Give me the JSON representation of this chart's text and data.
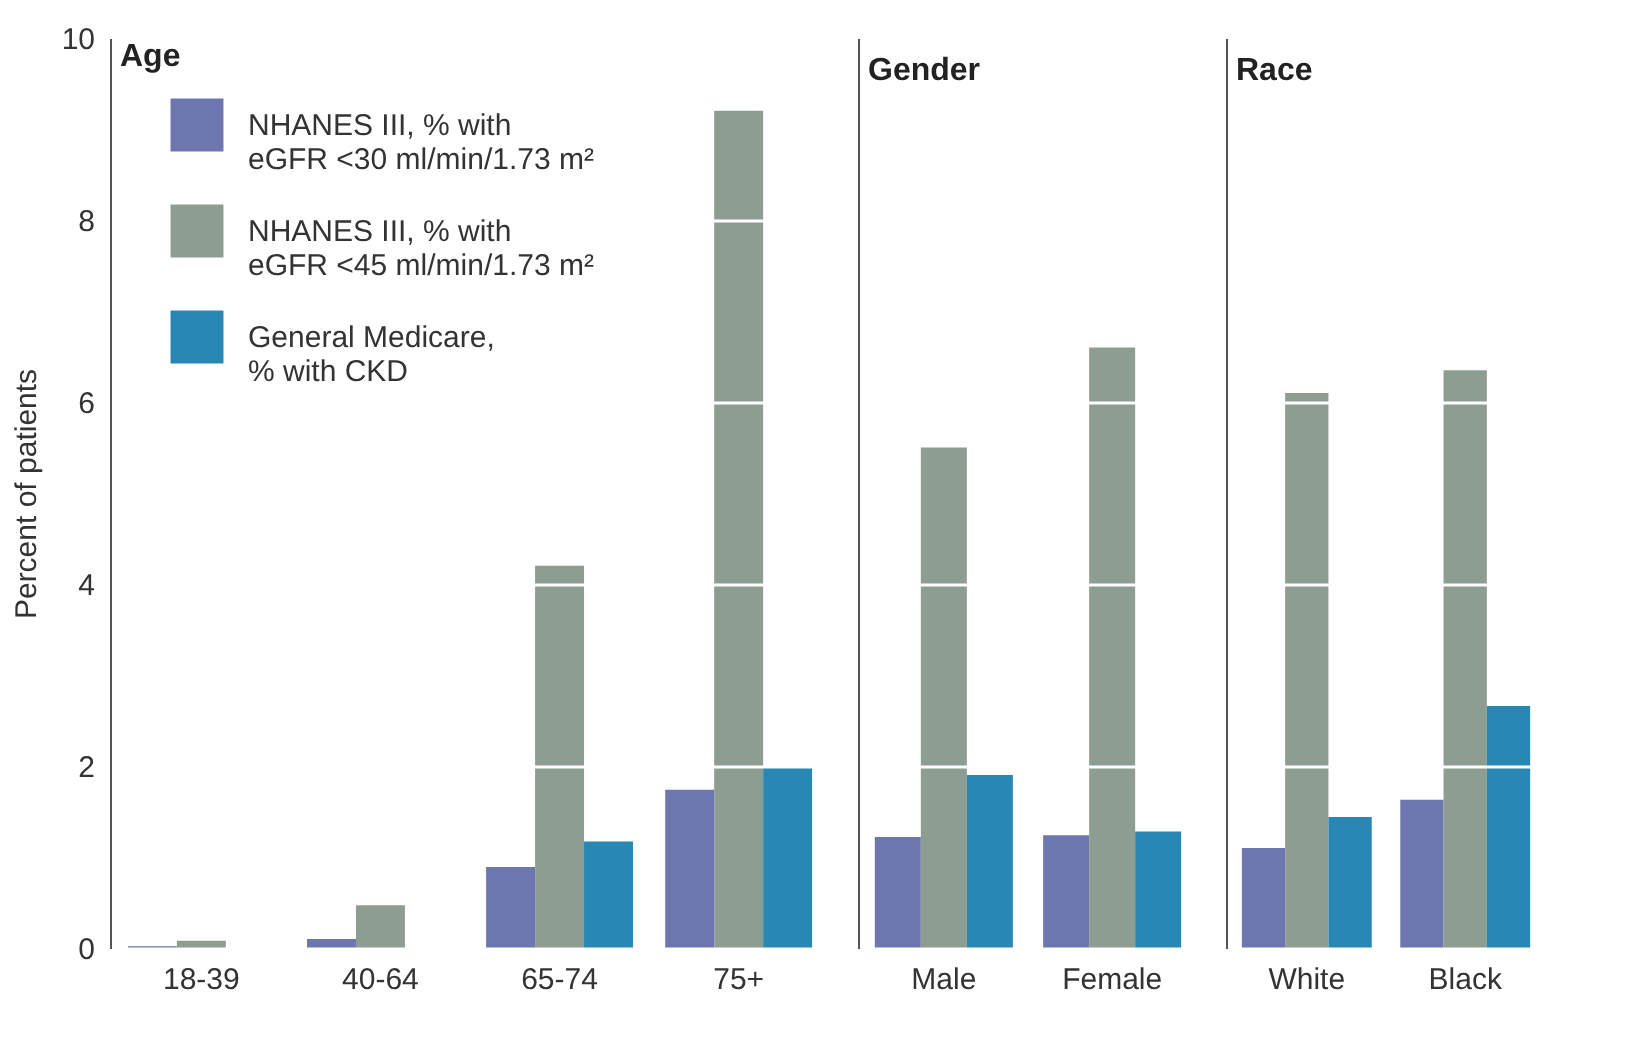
{
  "chart_data": [
    {
      "type": "bar",
      "title": "Age",
      "ylabel": "Percent of patients",
      "categories": [
        "18-39",
        "40-64",
        "65-74",
        "75+"
      ],
      "ylim": [
        0,
        10
      ],
      "yticks": [
        0,
        2,
        4,
        6,
        8,
        10
      ],
      "grid": "y",
      "legend": "top left",
      "series": [
        {
          "name": "NHANES III, % with eGFR <30 ml/min/1.73 m²",
          "color": "#6d76ae",
          "values": [
            0.02,
            0.1,
            0.89,
            1.74
          ]
        },
        {
          "name": "NHANES III, % with eGFR <45 ml/min/1.73 m²",
          "color": "#8e9d92",
          "values": [
            0.08,
            0.47,
            4.2,
            9.2
          ]
        },
        {
          "name": "General Medicare, % with CKD",
          "color": "#2987b4",
          "values": [
            null,
            null,
            1.17,
            2.0
          ]
        }
      ]
    },
    {
      "type": "bar",
      "title": "Gender",
      "categories": [
        "Male",
        "Female"
      ],
      "ylim": [
        0,
        10
      ],
      "yticks": [
        0,
        2,
        4,
        6,
        8,
        10
      ],
      "grid": "y",
      "tick_labels": "x",
      "series": [
        {
          "color": "#6d76ae",
          "values": [
            1.22,
            1.24
          ]
        },
        {
          "color": "#8e9d92",
          "values": [
            5.5,
            6.6
          ]
        },
        {
          "color": "#2987b4",
          "values": [
            1.9,
            1.28
          ]
        }
      ]
    },
    {
      "type": "bar",
      "title": "Race",
      "categories": [
        "White",
        "Black"
      ],
      "ylim": [
        0,
        10
      ],
      "yticks": [
        0,
        2,
        4,
        6,
        8,
        10
      ],
      "grid": "y",
      "tick_labels": "x",
      "series": [
        {
          "color": "#6d76ae",
          "values": [
            1.1,
            1.63
          ]
        },
        {
          "color": "#8e9d92",
          "values": [
            6.1,
            6.35
          ]
        },
        {
          "color": "#2987b4",
          "values": [
            1.44,
            2.66
          ]
        }
      ]
    }
  ]
}
